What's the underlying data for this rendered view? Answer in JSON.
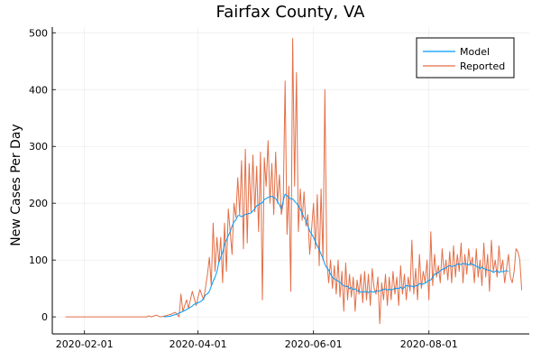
{
  "chart_data": {
    "type": "line",
    "title": "Fairfax County, VA",
    "xlabel": "",
    "ylabel": "New Cases Per Day",
    "x_type": "date",
    "x_start": "2020-01-22",
    "x_end": "2020-09-19",
    "xlim": [
      "2020-01-15",
      "2020-09-23"
    ],
    "ylim": [
      -30,
      510
    ],
    "x_ticks": [
      "2020-02-01",
      "2020-04-01",
      "2020-06-01",
      "2020-08-01"
    ],
    "y_ticks": [
      0,
      100,
      200,
      300,
      400,
      500
    ],
    "grid": true,
    "legend": "top-right",
    "colors": {
      "model": "#009AFA",
      "reported": "#E36F47"
    },
    "series": [
      {
        "name": "Model",
        "x_range": [
          "2020-03-14",
          "2020-09-12"
        ],
        "keypoints": [
          [
            "2020-03-14",
            0
          ],
          [
            "2020-03-17",
            1
          ],
          [
            "2020-03-20",
            4
          ],
          [
            "2020-03-23",
            8
          ],
          [
            "2020-03-26",
            13
          ],
          [
            "2020-03-29",
            19
          ],
          [
            "2020-04-01",
            25
          ],
          [
            "2020-04-04",
            33
          ],
          [
            "2020-04-07",
            45
          ],
          [
            "2020-04-10",
            70
          ],
          [
            "2020-04-13",
            105
          ],
          [
            "2020-04-16",
            135
          ],
          [
            "2020-04-19",
            160
          ],
          [
            "2020-04-22",
            178
          ],
          [
            "2020-04-25",
            178
          ],
          [
            "2020-04-28",
            182
          ],
          [
            "2020-05-01",
            190
          ],
          [
            "2020-05-04",
            200
          ],
          [
            "2020-05-07",
            208
          ],
          [
            "2020-05-10",
            212
          ],
          [
            "2020-05-13",
            203
          ],
          [
            "2020-05-15",
            190
          ],
          [
            "2020-05-17",
            216
          ],
          [
            "2020-05-20",
            208
          ],
          [
            "2020-05-23",
            200
          ],
          [
            "2020-05-26",
            183
          ],
          [
            "2020-05-29",
            160
          ],
          [
            "2020-06-01",
            140
          ],
          [
            "2020-06-04",
            118
          ],
          [
            "2020-06-07",
            93
          ],
          [
            "2020-06-10",
            75
          ],
          [
            "2020-06-13",
            65
          ],
          [
            "2020-06-16",
            58
          ],
          [
            "2020-06-19",
            54
          ],
          [
            "2020-06-22",
            48
          ],
          [
            "2020-06-25",
            46
          ],
          [
            "2020-06-28",
            44
          ],
          [
            "2020-07-01",
            45
          ],
          [
            "2020-07-04",
            46
          ],
          [
            "2020-07-07",
            47
          ],
          [
            "2020-07-10",
            47
          ],
          [
            "2020-07-13",
            48
          ],
          [
            "2020-07-16",
            50
          ],
          [
            "2020-07-19",
            52
          ],
          [
            "2020-07-22",
            54
          ],
          [
            "2020-07-25",
            55
          ],
          [
            "2020-07-28",
            57
          ],
          [
            "2020-07-31",
            62
          ],
          [
            "2020-08-03",
            70
          ],
          [
            "2020-08-06",
            78
          ],
          [
            "2020-08-09",
            85
          ],
          [
            "2020-08-12",
            90
          ],
          [
            "2020-08-15",
            90
          ],
          [
            "2020-08-18",
            92
          ],
          [
            "2020-08-21",
            93
          ],
          [
            "2020-08-24",
            92
          ],
          [
            "2020-08-27",
            88
          ],
          [
            "2020-08-30",
            85
          ],
          [
            "2020-09-02",
            82
          ],
          [
            "2020-09-05",
            80
          ],
          [
            "2020-09-08",
            80
          ],
          [
            "2020-09-12",
            80
          ]
        ]
      },
      {
        "name": "Reported",
        "x_range": [
          "2020-01-22",
          "2020-09-19"
        ],
        "keypoints": [
          [
            "2020-01-22",
            0
          ],
          [
            "2020-03-05",
            0
          ],
          [
            "2020-03-06",
            2
          ],
          [
            "2020-03-07",
            0
          ],
          [
            "2020-03-10",
            3
          ],
          [
            "2020-03-12",
            0
          ],
          [
            "2020-03-15",
            2
          ],
          [
            "2020-03-18",
            5
          ],
          [
            "2020-03-20",
            8
          ],
          [
            "2020-03-22",
            0
          ],
          [
            "2020-03-23",
            40
          ],
          [
            "2020-03-24",
            10
          ],
          [
            "2020-03-26",
            30
          ],
          [
            "2020-03-27",
            15
          ],
          [
            "2020-03-29",
            45
          ],
          [
            "2020-03-31",
            20
          ],
          [
            "2020-04-02",
            48
          ],
          [
            "2020-04-04",
            30
          ],
          [
            "2020-04-06",
            75
          ],
          [
            "2020-04-07",
            105
          ],
          [
            "2020-04-08",
            55
          ],
          [
            "2020-04-09",
            165
          ],
          [
            "2020-04-10",
            80
          ],
          [
            "2020-04-11",
            140
          ],
          [
            "2020-04-12",
            95
          ],
          [
            "2020-04-13",
            140
          ],
          [
            "2020-04-14",
            60
          ],
          [
            "2020-04-15",
            165
          ],
          [
            "2020-04-16",
            80
          ],
          [
            "2020-04-17",
            190
          ],
          [
            "2020-04-18",
            150
          ],
          [
            "2020-04-19",
            110
          ],
          [
            "2020-04-20",
            200
          ],
          [
            "2020-04-21",
            175
          ],
          [
            "2020-04-22",
            245
          ],
          [
            "2020-04-23",
            180
          ],
          [
            "2020-04-24",
            275
          ],
          [
            "2020-04-25",
            120
          ],
          [
            "2020-04-26",
            295
          ],
          [
            "2020-04-27",
            130
          ],
          [
            "2020-04-28",
            270
          ],
          [
            "2020-04-29",
            185
          ],
          [
            "2020-04-30",
            285
          ],
          [
            "2020-05-01",
            185
          ],
          [
            "2020-05-02",
            265
          ],
          [
            "2020-05-03",
            150
          ],
          [
            "2020-05-04",
            290
          ],
          [
            "2020-05-05",
            30
          ],
          [
            "2020-05-06",
            280
          ],
          [
            "2020-05-07",
            230
          ],
          [
            "2020-05-08",
            310
          ],
          [
            "2020-05-09",
            200
          ],
          [
            "2020-05-10",
            270
          ],
          [
            "2020-05-11",
            180
          ],
          [
            "2020-05-12",
            290
          ],
          [
            "2020-05-13",
            200
          ],
          [
            "2020-05-14",
            250
          ],
          [
            "2020-05-15",
            180
          ],
          [
            "2020-05-16",
            200
          ],
          [
            "2020-05-17",
            415
          ],
          [
            "2020-05-18",
            145
          ],
          [
            "2020-05-19",
            230
          ],
          [
            "2020-05-20",
            45
          ],
          [
            "2020-05-21",
            490
          ],
          [
            "2020-05-22",
            230
          ],
          [
            "2020-05-23",
            430
          ],
          [
            "2020-05-24",
            150
          ],
          [
            "2020-05-25",
            225
          ],
          [
            "2020-05-26",
            170
          ],
          [
            "2020-05-27",
            220
          ],
          [
            "2020-05-28",
            160
          ],
          [
            "2020-05-29",
            180
          ],
          [
            "2020-05-30",
            110
          ],
          [
            "2020-06-01",
            200
          ],
          [
            "2020-06-02",
            120
          ],
          [
            "2020-06-03",
            215
          ],
          [
            "2020-06-04",
            90
          ],
          [
            "2020-06-05",
            225
          ],
          [
            "2020-06-06",
            100
          ],
          [
            "2020-06-07",
            400
          ],
          [
            "2020-06-08",
            100
          ],
          [
            "2020-06-09",
            60
          ],
          [
            "2020-06-10",
            100
          ],
          [
            "2020-06-11",
            50
          ],
          [
            "2020-06-12",
            90
          ],
          [
            "2020-06-13",
            40
          ],
          [
            "2020-06-14",
            100
          ],
          [
            "2020-06-15",
            35
          ],
          [
            "2020-06-16",
            80
          ],
          [
            "2020-06-17",
            10
          ],
          [
            "2020-06-18",
            95
          ],
          [
            "2020-06-19",
            30
          ],
          [
            "2020-06-20",
            75
          ],
          [
            "2020-06-21",
            35
          ],
          [
            "2020-06-22",
            70
          ],
          [
            "2020-06-23",
            10
          ],
          [
            "2020-06-24",
            65
          ],
          [
            "2020-06-25",
            40
          ],
          [
            "2020-06-26",
            75
          ],
          [
            "2020-06-27",
            25
          ],
          [
            "2020-06-28",
            80
          ],
          [
            "2020-06-29",
            30
          ],
          [
            "2020-06-30",
            75
          ],
          [
            "2020-07-01",
            20
          ],
          [
            "2020-07-02",
            85
          ],
          [
            "2020-07-03",
            50
          ],
          [
            "2020-07-04",
            40
          ],
          [
            "2020-07-05",
            70
          ],
          [
            "2020-07-06",
            -12
          ],
          [
            "2020-07-07",
            60
          ],
          [
            "2020-07-08",
            30
          ],
          [
            "2020-07-09",
            75
          ],
          [
            "2020-07-10",
            20
          ],
          [
            "2020-07-11",
            70
          ],
          [
            "2020-07-12",
            30
          ],
          [
            "2020-07-13",
            80
          ],
          [
            "2020-07-14",
            40
          ],
          [
            "2020-07-15",
            70
          ],
          [
            "2020-07-16",
            20
          ],
          [
            "2020-07-17",
            90
          ],
          [
            "2020-07-18",
            40
          ],
          [
            "2020-07-19",
            75
          ],
          [
            "2020-07-20",
            30
          ],
          [
            "2020-07-21",
            70
          ],
          [
            "2020-07-22",
            45
          ],
          [
            "2020-07-23",
            135
          ],
          [
            "2020-07-24",
            40
          ],
          [
            "2020-07-25",
            85
          ],
          [
            "2020-07-26",
            30
          ],
          [
            "2020-07-27",
            110
          ],
          [
            "2020-07-28",
            50
          ],
          [
            "2020-07-29",
            80
          ],
          [
            "2020-07-30",
            60
          ],
          [
            "2020-07-31",
            100
          ],
          [
            "2020-08-01",
            30
          ],
          [
            "2020-08-02",
            150
          ],
          [
            "2020-08-03",
            55
          ],
          [
            "2020-08-04",
            110
          ],
          [
            "2020-08-05",
            70
          ],
          [
            "2020-08-06",
            90
          ],
          [
            "2020-08-07",
            60
          ],
          [
            "2020-08-08",
            120
          ],
          [
            "2020-08-09",
            75
          ],
          [
            "2020-08-10",
            100
          ],
          [
            "2020-08-11",
            65
          ],
          [
            "2020-08-12",
            115
          ],
          [
            "2020-08-13",
            60
          ],
          [
            "2020-08-14",
            125
          ],
          [
            "2020-08-15",
            70
          ],
          [
            "2020-08-16",
            110
          ],
          [
            "2020-08-17",
            80
          ],
          [
            "2020-08-18",
            130
          ],
          [
            "2020-08-19",
            60
          ],
          [
            "2020-08-20",
            110
          ],
          [
            "2020-08-21",
            75
          ],
          [
            "2020-08-22",
            120
          ],
          [
            "2020-08-23",
            90
          ],
          [
            "2020-08-24",
            105
          ],
          [
            "2020-08-25",
            60
          ],
          [
            "2020-08-26",
            120
          ],
          [
            "2020-08-27",
            70
          ],
          [
            "2020-08-28",
            100
          ],
          [
            "2020-08-29",
            55
          ],
          [
            "2020-08-30",
            130
          ],
          [
            "2020-08-31",
            70
          ],
          [
            "2020-09-01",
            110
          ],
          [
            "2020-09-02",
            45
          ],
          [
            "2020-09-03",
            135
          ],
          [
            "2020-09-04",
            80
          ],
          [
            "2020-09-05",
            100
          ],
          [
            "2020-09-06",
            70
          ],
          [
            "2020-09-07",
            125
          ],
          [
            "2020-09-08",
            80
          ],
          [
            "2020-09-09",
            100
          ],
          [
            "2020-09-10",
            60
          ],
          [
            "2020-09-11",
            85
          ],
          [
            "2020-09-12",
            110
          ],
          [
            "2020-09-13",
            70
          ],
          [
            "2020-09-14",
            60
          ],
          [
            "2020-09-15",
            80
          ],
          [
            "2020-09-16",
            120
          ],
          [
            "2020-09-17",
            115
          ],
          [
            "2020-09-18",
            100
          ],
          [
            "2020-09-19",
            47
          ]
        ]
      }
    ]
  }
}
